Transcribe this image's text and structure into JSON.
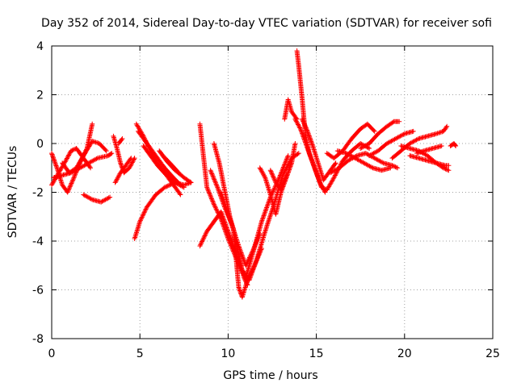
{
  "chart_data": {
    "type": "scatter",
    "title": "Day 352 of 2014, Sidereal Day-to-day VTEC variation (SDTVAR) for receiver sofi",
    "xlabel": "GPS time / hours",
    "ylabel": "SDTVAR / TECUs",
    "xlim": [
      0,
      25
    ],
    "ylim": [
      -8,
      4
    ],
    "xticks": [
      0,
      5,
      10,
      15,
      20,
      25
    ],
    "yticks": [
      -8,
      -6,
      -4,
      -2,
      0,
      2,
      4
    ],
    "grid": true,
    "marker": "+",
    "series": [
      {
        "name": "SDTVAR",
        "color": "#ff0000",
        "arcs": [
          [
            [
              0.0,
              -0.4
            ],
            [
              0.3,
              -1.0
            ],
            [
              0.6,
              -1.7
            ],
            [
              0.9,
              -2.0
            ],
            [
              1.2,
              -1.5
            ],
            [
              1.6,
              -0.8
            ],
            [
              2.0,
              -0.2
            ],
            [
              2.3,
              0.8
            ]
          ],
          [
            [
              0.0,
              -1.7
            ],
            [
              0.4,
              -1.2
            ],
            [
              0.8,
              -0.7
            ],
            [
              1.1,
              -0.3
            ],
            [
              1.4,
              -0.2
            ],
            [
              1.8,
              -0.6
            ],
            [
              2.2,
              -1.0
            ]
          ],
          [
            [
              0.1,
              -1.4
            ],
            [
              0.6,
              -1.3
            ],
            [
              1.1,
              -1.2
            ],
            [
              1.6,
              -1.0
            ],
            [
              2.1,
              -0.8
            ],
            [
              2.6,
              -0.6
            ],
            [
              3.2,
              -0.5
            ],
            [
              3.4,
              -0.4
            ]
          ],
          [
            [
              0.6,
              -0.8
            ],
            [
              1.0,
              -1.2
            ],
            [
              1.4,
              -1.0
            ],
            [
              1.8,
              -0.5
            ],
            [
              2.3,
              0.1
            ],
            [
              2.7,
              0.0
            ],
            [
              3.1,
              -0.3
            ]
          ],
          [
            [
              1.8,
              -2.1
            ],
            [
              2.3,
              -2.3
            ],
            [
              2.8,
              -2.4
            ],
            [
              3.3,
              -2.2
            ]
          ],
          [
            [
              3.5,
              0.3
            ],
            [
              3.7,
              -0.2
            ],
            [
              3.9,
              -0.8
            ],
            [
              4.1,
              -1.2
            ],
            [
              4.4,
              -1.0
            ],
            [
              4.7,
              -0.6
            ]
          ],
          [
            [
              3.6,
              -1.6
            ],
            [
              3.9,
              -1.2
            ],
            [
              4.2,
              -0.9
            ],
            [
              4.5,
              -0.6
            ]
          ],
          [
            [
              3.8,
              0.0
            ],
            [
              4.0,
              0.2
            ]
          ],
          [
            [
              4.8,
              0.8
            ],
            [
              5.2,
              0.3
            ],
            [
              5.6,
              -0.3
            ],
            [
              6.0,
              -0.8
            ],
            [
              6.5,
              -1.3
            ],
            [
              7.0,
              -1.6
            ],
            [
              7.5,
              -1.8
            ]
          ],
          [
            [
              4.9,
              0.5
            ],
            [
              5.4,
              0.0
            ],
            [
              5.9,
              -0.5
            ],
            [
              6.4,
              -1.0
            ],
            [
              6.9,
              -1.4
            ],
            [
              7.3,
              -1.7
            ]
          ],
          [
            [
              4.7,
              -3.9
            ],
            [
              5.0,
              -3.2
            ],
            [
              5.4,
              -2.6
            ],
            [
              5.9,
              -2.1
            ],
            [
              6.4,
              -1.8
            ],
            [
              7.0,
              -1.6
            ],
            [
              7.5,
              -1.7
            ],
            [
              7.9,
              -1.6
            ]
          ],
          [
            [
              5.2,
              -0.1
            ],
            [
              5.6,
              -0.5
            ],
            [
              6.0,
              -0.9
            ],
            [
              6.5,
              -1.3
            ],
            [
              7.0,
              -1.8
            ],
            [
              7.3,
              -2.1
            ]
          ],
          [
            [
              6.1,
              -0.3
            ],
            [
              6.5,
              -0.7
            ],
            [
              7.0,
              -1.1
            ],
            [
              7.5,
              -1.4
            ],
            [
              7.9,
              -1.6
            ]
          ],
          [
            [
              6.3,
              -0.5
            ],
            [
              6.7,
              -0.8
            ],
            [
              7.2,
              -1.2
            ]
          ],
          [
            [
              8.4,
              -4.2
            ],
            [
              8.8,
              -3.6
            ],
            [
              9.2,
              -3.2
            ],
            [
              9.6,
              -2.8
            ],
            [
              10.0,
              -3.6
            ],
            [
              10.4,
              -4.4
            ],
            [
              10.8,
              -5.2
            ],
            [
              11.2,
              -5.6
            ],
            [
              11.6,
              -4.8
            ],
            [
              12.1,
              -3.6
            ],
            [
              12.6,
              -2.5
            ],
            [
              13.1,
              -1.3
            ],
            [
              13.6,
              -0.6
            ],
            [
              14.0,
              -0.4
            ]
          ],
          [
            [
              8.4,
              0.8
            ],
            [
              8.6,
              -0.5
            ],
            [
              8.8,
              -1.8
            ],
            [
              9.2,
              -2.5
            ],
            [
              9.6,
              -3.1
            ],
            [
              10.0,
              -3.9
            ],
            [
              10.4,
              -4.6
            ],
            [
              10.8,
              -5.3
            ],
            [
              11.0,
              -5.5
            ],
            [
              11.4,
              -4.5
            ],
            [
              11.9,
              -3.2
            ],
            [
              12.4,
              -2.2
            ],
            [
              12.9,
              -1.4
            ],
            [
              13.4,
              -0.5
            ]
          ],
          [
            [
              9.0,
              -1.1
            ],
            [
              9.4,
              -1.8
            ],
            [
              9.8,
              -2.6
            ],
            [
              10.2,
              -3.3
            ],
            [
              10.6,
              -4.2
            ],
            [
              11.0,
              -5.0
            ],
            [
              11.4,
              -4.4
            ],
            [
              11.8,
              -3.7
            ]
          ],
          [
            [
              9.2,
              0.0
            ],
            [
              9.5,
              -0.8
            ],
            [
              9.8,
              -1.9
            ],
            [
              10.1,
              -3.0
            ],
            [
              10.4,
              -3.8
            ],
            [
              10.7,
              -4.9
            ],
            [
              10.9,
              -5.5
            ],
            [
              11.1,
              -5.8
            ]
          ],
          [
            [
              9.6,
              -2.0
            ],
            [
              10.0,
              -2.9
            ],
            [
              10.3,
              -3.5
            ],
            [
              10.5,
              -5.1
            ],
            [
              10.6,
              -5.9
            ],
            [
              10.8,
              -6.3
            ],
            [
              11.1,
              -5.6
            ],
            [
              11.5,
              -5.0
            ],
            [
              11.9,
              -4.3
            ]
          ],
          [
            [
              11.8,
              -1.0
            ],
            [
              12.1,
              -1.4
            ],
            [
              12.4,
              -2.1
            ],
            [
              12.7,
              -2.9
            ],
            [
              13.0,
              -2.0
            ],
            [
              13.3,
              -1.4
            ],
            [
              13.6,
              -0.8
            ],
            [
              13.8,
              0.0
            ]
          ],
          [
            [
              12.4,
              -1.1
            ],
            [
              12.7,
              -1.6
            ],
            [
              13.0,
              -1.9
            ],
            [
              13.3,
              -1.3
            ]
          ],
          [
            [
              13.2,
              1.0
            ],
            [
              13.4,
              1.8
            ],
            [
              13.6,
              1.3
            ],
            [
              13.9,
              1.0
            ]
          ],
          [
            [
              13.9,
              3.8
            ],
            [
              14.0,
              3.2
            ],
            [
              14.1,
              2.5
            ],
            [
              14.2,
              1.8
            ],
            [
              14.3,
              1.0
            ],
            [
              14.4,
              0.3
            ],
            [
              14.6,
              -0.4
            ],
            [
              14.9,
              -1.0
            ],
            [
              15.2,
              -1.6
            ],
            [
              15.5,
              -2.0
            ]
          ],
          [
            [
              13.8,
              1.0
            ],
            [
              14.1,
              0.6
            ],
            [
              14.4,
              0.0
            ],
            [
              14.7,
              -0.6
            ],
            [
              15.0,
              -1.2
            ],
            [
              15.3,
              -1.8
            ],
            [
              15.6,
              -1.9
            ],
            [
              16.0,
              -1.4
            ],
            [
              16.5,
              -0.7
            ],
            [
              17.0,
              -0.3
            ],
            [
              17.5,
              0.0
            ],
            [
              18.0,
              -0.2
            ]
          ],
          [
            [
              14.2,
              1.0
            ],
            [
              14.5,
              0.5
            ],
            [
              14.8,
              -0.1
            ],
            [
              15.1,
              -0.8
            ],
            [
              15.4,
              -1.5
            ],
            [
              15.7,
              -1.2
            ],
            [
              16.1,
              -0.8
            ]
          ],
          [
            [
              15.6,
              -0.4
            ],
            [
              16.0,
              -0.6
            ],
            [
              16.5,
              -0.3
            ],
            [
              17.0,
              0.2
            ],
            [
              17.5,
              0.6
            ],
            [
              17.9,
              0.8
            ],
            [
              18.3,
              0.5
            ]
          ],
          [
            [
              15.8,
              -1.2
            ],
            [
              16.3,
              -1.0
            ],
            [
              16.8,
              -0.7
            ],
            [
              17.3,
              -0.5
            ],
            [
              17.8,
              -0.4
            ],
            [
              18.3,
              -0.6
            ],
            [
              18.8,
              -0.8
            ],
            [
              19.3,
              -0.9
            ],
            [
              19.6,
              -1.0
            ]
          ],
          [
            [
              16.2,
              -0.3
            ],
            [
              16.7,
              -0.4
            ],
            [
              17.2,
              -0.6
            ],
            [
              17.7,
              -0.8
            ],
            [
              18.2,
              -1.0
            ],
            [
              18.7,
              -1.1
            ],
            [
              19.2,
              -1.0
            ]
          ],
          [
            [
              17.5,
              -0.2
            ],
            [
              18.0,
              0.0
            ],
            [
              18.5,
              0.4
            ],
            [
              19.0,
              0.7
            ],
            [
              19.4,
              0.9
            ],
            [
              19.7,
              0.9
            ]
          ],
          [
            [
              18.0,
              -0.5
            ],
            [
              18.5,
              -0.3
            ],
            [
              19.0,
              0.0
            ],
            [
              19.5,
              0.2
            ],
            [
              20.0,
              0.4
            ],
            [
              20.5,
              0.5
            ]
          ],
          [
            [
              19.3,
              -0.6
            ],
            [
              19.8,
              -0.3
            ],
            [
              20.3,
              0.0
            ],
            [
              20.8,
              0.2
            ],
            [
              21.3,
              0.3
            ],
            [
              21.8,
              0.4
            ],
            [
              22.2,
              0.5
            ],
            [
              22.4,
              0.7
            ]
          ],
          [
            [
              19.8,
              -0.1
            ],
            [
              20.3,
              -0.2
            ],
            [
              20.8,
              -0.3
            ],
            [
              21.3,
              -0.5
            ],
            [
              21.8,
              -0.8
            ],
            [
              22.2,
              -1.0
            ],
            [
              22.5,
              -1.1
            ]
          ],
          [
            [
              20.3,
              -0.5
            ],
            [
              20.8,
              -0.6
            ],
            [
              21.3,
              -0.7
            ],
            [
              21.8,
              -0.8
            ],
            [
              22.3,
              -0.9
            ],
            [
              22.5,
              -0.9
            ]
          ],
          [
            [
              20.7,
              -0.4
            ],
            [
              21.1,
              -0.3
            ],
            [
              21.6,
              -0.2
            ],
            [
              22.1,
              -0.1
            ]
          ],
          [
            [
              22.6,
              -0.1
            ],
            [
              22.8,
              0.0
            ],
            [
              22.9,
              -0.1
            ]
          ]
        ]
      }
    ]
  }
}
